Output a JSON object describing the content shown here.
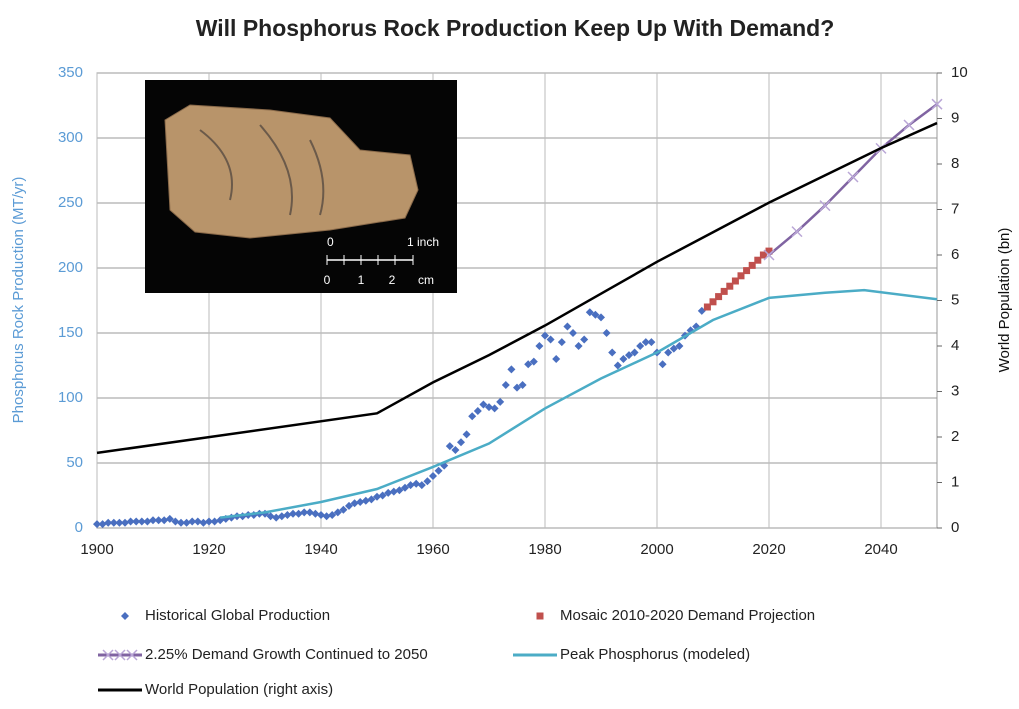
{
  "chart_data": {
    "type": "line",
    "title": "Will Phosphorus Rock Production Keep Up With Demand?",
    "y_label": "Phosphorus Rock Production (MT/yr)",
    "y2_label": "World Population (bn)",
    "xlim": [
      1900,
      2050
    ],
    "xticks": [
      1900,
      1920,
      1940,
      1960,
      1980,
      2000,
      2020,
      2040
    ],
    "ylim": [
      0,
      350
    ],
    "yticks": [
      0,
      50,
      100,
      150,
      200,
      250,
      300,
      350
    ],
    "y2lim": [
      0,
      10
    ],
    "y2ticks": [
      0,
      1,
      2,
      3,
      4,
      5,
      6,
      7,
      8,
      9,
      10
    ],
    "grid": true,
    "legend": "bottom",
    "series": [
      {
        "name": "Historical Global Production",
        "type": "scatter",
        "marker": "diamond",
        "color": "#4a6fc0",
        "x": [
          1900,
          1901,
          1902,
          1903,
          1904,
          1905,
          1906,
          1907,
          1908,
          1909,
          1910,
          1911,
          1912,
          1913,
          1914,
          1915,
          1916,
          1917,
          1918,
          1919,
          1920,
          1921,
          1922,
          1923,
          1924,
          1925,
          1926,
          1927,
          1928,
          1929,
          1930,
          1931,
          1932,
          1933,
          1934,
          1935,
          1936,
          1937,
          1938,
          1939,
          1940,
          1941,
          1942,
          1943,
          1944,
          1945,
          1946,
          1947,
          1948,
          1949,
          1950,
          1951,
          1952,
          1953,
          1954,
          1955,
          1956,
          1957,
          1958,
          1959,
          1960,
          1961,
          1962,
          1963,
          1964,
          1965,
          1966,
          1967,
          1968,
          1969,
          1970,
          1971,
          1972,
          1973,
          1974,
          1975,
          1976,
          1977,
          1978,
          1979,
          1980,
          1981,
          1982,
          1983,
          1984,
          1985,
          1986,
          1987,
          1988,
          1989,
          1990,
          1991,
          1992,
          1993,
          1994,
          1995,
          1996,
          1997,
          1998,
          1999,
          2000,
          2001,
          2002,
          2003,
          2004,
          2005,
          2006,
          2007,
          2008
        ],
        "values": [
          3,
          3,
          4,
          4,
          4,
          4,
          5,
          5,
          5,
          5,
          6,
          6,
          6,
          7,
          5,
          4,
          4,
          5,
          5,
          4,
          5,
          5,
          6,
          7,
          8,
          9,
          9,
          10,
          10,
          11,
          11,
          9,
          8,
          9,
          10,
          11,
          11,
          12,
          12,
          11,
          10,
          9,
          10,
          12,
          14,
          17,
          19,
          20,
          21,
          22,
          24,
          25,
          27,
          28,
          29,
          31,
          33,
          34,
          33,
          36,
          40,
          44,
          48,
          63,
          60,
          66,
          72,
          86,
          90,
          95,
          93,
          92,
          97,
          110,
          122,
          108,
          110,
          126,
          128,
          140,
          148,
          145,
          130,
          143,
          155,
          150,
          140,
          145,
          166,
          164,
          162,
          150,
          135,
          125,
          130,
          133,
          135,
          140,
          143,
          143,
          135,
          126,
          135,
          138,
          140,
          148,
          152,
          155,
          167
        ]
      },
      {
        "name": "Mosaic 2010-2020 Demand Projection",
        "type": "scatter",
        "marker": "square",
        "color": "#c0504d",
        "x": [
          2009,
          2010,
          2011,
          2012,
          2013,
          2014,
          2015,
          2016,
          2017,
          2018,
          2019,
          2020
        ],
        "values": [
          170,
          174,
          178,
          182,
          186,
          190,
          194,
          198,
          202,
          206,
          210,
          213
        ]
      },
      {
        "name": "2.25% Demand Growth Continued to 2050",
        "type": "line",
        "marker": "x",
        "color": "#8064a2",
        "x": [
          2020,
          2025,
          2030,
          2035,
          2040,
          2045,
          2050
        ],
        "values": [
          210,
          228,
          248,
          270,
          292,
          310,
          326
        ]
      },
      {
        "name": "Peak Phosphorus (modeled)",
        "type": "line",
        "color": "#4bacc6",
        "x": [
          1922,
          1930,
          1940,
          1950,
          1960,
          1970,
          1980,
          1990,
          2000,
          2010,
          2020,
          2030,
          2037,
          2050
        ],
        "values": [
          8,
          12,
          20,
          30,
          47,
          65,
          92,
          115,
          135,
          160,
          177,
          181,
          183,
          176
        ]
      },
      {
        "name": "World Population (right axis)",
        "type": "line",
        "color": "#000000",
        "axis": "y2",
        "x": [
          1900,
          1950,
          1960,
          1970,
          1980,
          1990,
          2000,
          2010,
          2020,
          2030,
          2040,
          2050
        ],
        "values": [
          1.65,
          2.52,
          3.2,
          3.8,
          4.45,
          5.15,
          5.85,
          6.5,
          7.15,
          7.75,
          8.35,
          8.9
        ]
      }
    ]
  },
  "inset": {
    "scale_labels": [
      "0",
      "1 inch",
      "0",
      "1",
      "2",
      "cm"
    ]
  }
}
